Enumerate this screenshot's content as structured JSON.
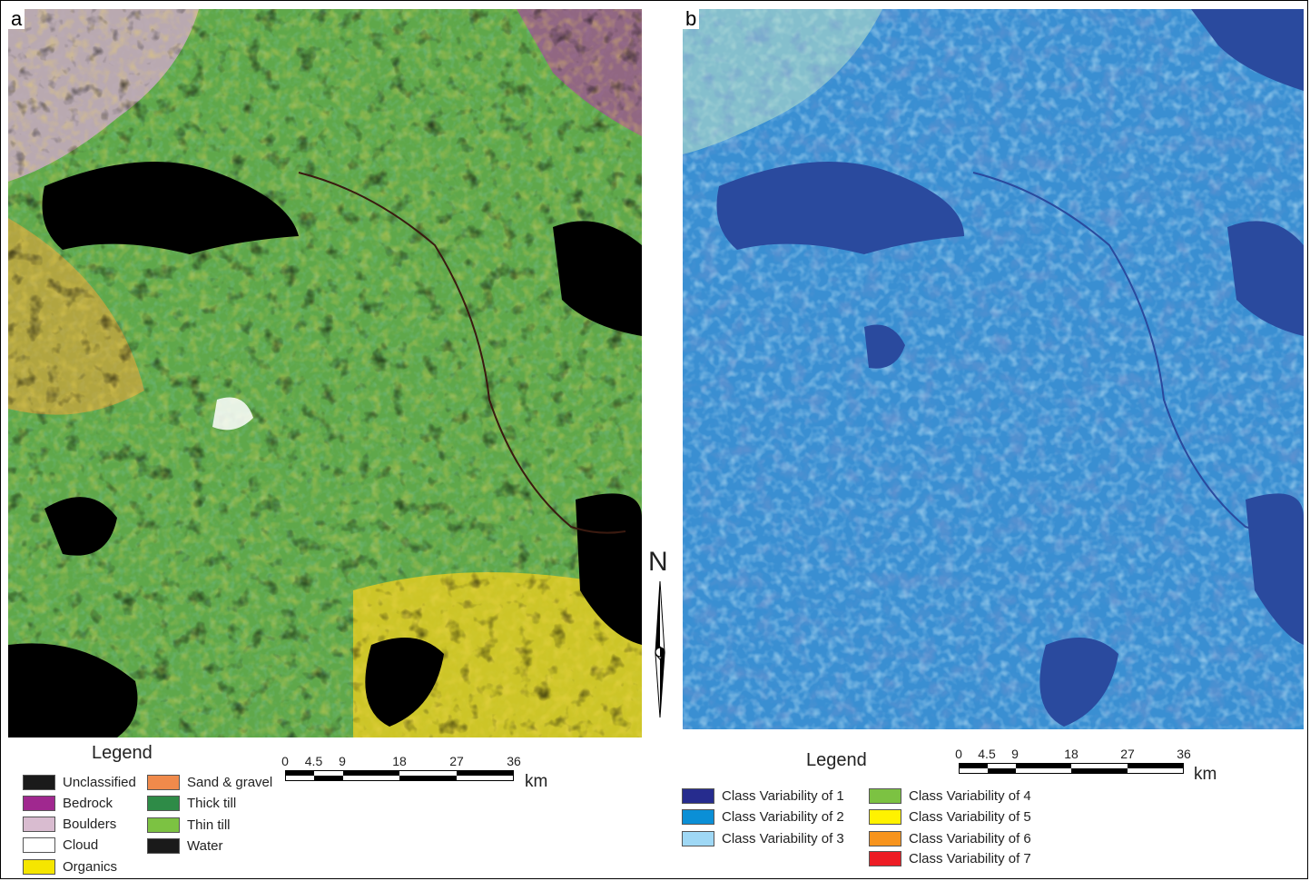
{
  "panels": {
    "a": {
      "letter": "a"
    },
    "b": {
      "letter": "b"
    }
  },
  "north_arrow": {
    "letter": "N",
    "icon": "north-arrow-icon"
  },
  "legend_a": {
    "title": "Legend",
    "items": [
      {
        "label": "Unclassified",
        "color": "#1a1a1a"
      },
      {
        "label": "Bedrock",
        "color": "#a0288f"
      },
      {
        "label": "Boulders",
        "color": "#d9bcd0"
      },
      {
        "label": "Cloud",
        "color": "#ffffff"
      },
      {
        "label": "Organics",
        "color": "#f5e600"
      },
      {
        "label": "Sand & gravel",
        "color": "#f08a4b"
      },
      {
        "label": "Thick till",
        "color": "#2e8b47"
      },
      {
        "label": "Thin till",
        "color": "#7cc242"
      },
      {
        "label": "Water",
        "color": "#1a1a1a"
      }
    ]
  },
  "legend_b": {
    "title": "Legend",
    "items": [
      {
        "label": "Class Variability of 1",
        "color": "#262c8e"
      },
      {
        "label": "Class Variability of 2",
        "color": "#0b8fd6"
      },
      {
        "label": "Class Variability of 3",
        "color": "#9fd8f5"
      },
      {
        "label": "Class Variability of 4",
        "color": "#7cc242"
      },
      {
        "label": "Class Variability of 5",
        "color": "#fff200"
      },
      {
        "label": "Class Variability of 6",
        "color": "#f7941d"
      },
      {
        "label": "Class Variability of 7",
        "color": "#ed1c24"
      }
    ]
  },
  "scale_bar": {
    "ticks": [
      "0",
      "4.5",
      "9",
      "18",
      "27",
      "36"
    ],
    "unit": "km"
  },
  "colors": {
    "map_a_base": "#5fa84a",
    "map_a_water": "#000000",
    "map_b_base": "#3a8fd2",
    "map_b_water": "#2a4a9e"
  }
}
